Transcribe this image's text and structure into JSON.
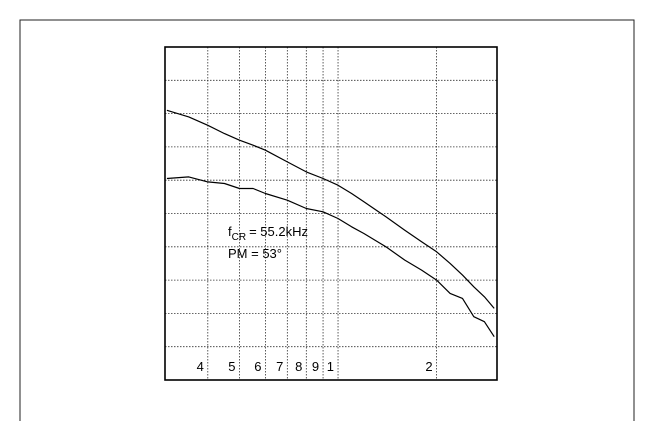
{
  "chart_data": {
    "type": "line",
    "x": [
      0.3,
      0.35,
      0.4,
      0.45,
      0.5,
      0.55,
      0.6,
      0.7,
      0.8,
      0.9,
      1,
      1.1,
      1.2,
      1.4,
      1.6,
      1.8,
      2,
      2.2,
      2.4,
      2.6,
      2.8,
      3.0
    ],
    "series": [
      {
        "color": "#000000",
        "values": [
          8.1,
          7.9,
          7.65,
          7.4,
          7.2,
          7.05,
          6.9,
          6.55,
          6.25,
          6.05,
          5.85,
          5.6,
          5.35,
          4.9,
          4.5,
          4.15,
          3.85,
          3.5,
          3.15,
          2.8,
          2.5,
          2.15
        ]
      },
      {
        "color": "#000000",
        "values": [
          6.05,
          6.1,
          5.95,
          5.9,
          5.75,
          5.75,
          5.6,
          5.4,
          5.15,
          5.05,
          4.85,
          4.6,
          4.4,
          4.0,
          3.6,
          3.3,
          3.0,
          2.6,
          2.45,
          1.9,
          1.75,
          1.3
        ]
      }
    ],
    "log_x": true,
    "xlim": [
      0.296,
      3.06
    ],
    "xticks": [
      {
        "value": 0.4,
        "label": "4"
      },
      {
        "value": 0.5,
        "label": "5"
      },
      {
        "value": 0.6,
        "label": "6"
      },
      {
        "value": 0.7,
        "label": "7"
      },
      {
        "value": 0.8,
        "label": "8"
      },
      {
        "value": 0.9,
        "label": "9"
      },
      1,
      2
    ],
    "ylim": [
      0,
      10
    ],
    "yticks": [
      1,
      2,
      3,
      4,
      5,
      6,
      7,
      8,
      9
    ],
    "grid": true,
    "annotations": [
      {
        "symbol": "f",
        "subscript": "CR",
        "text": "= 55.2kHz"
      },
      {
        "text": "PM = 53°"
      }
    ]
  }
}
